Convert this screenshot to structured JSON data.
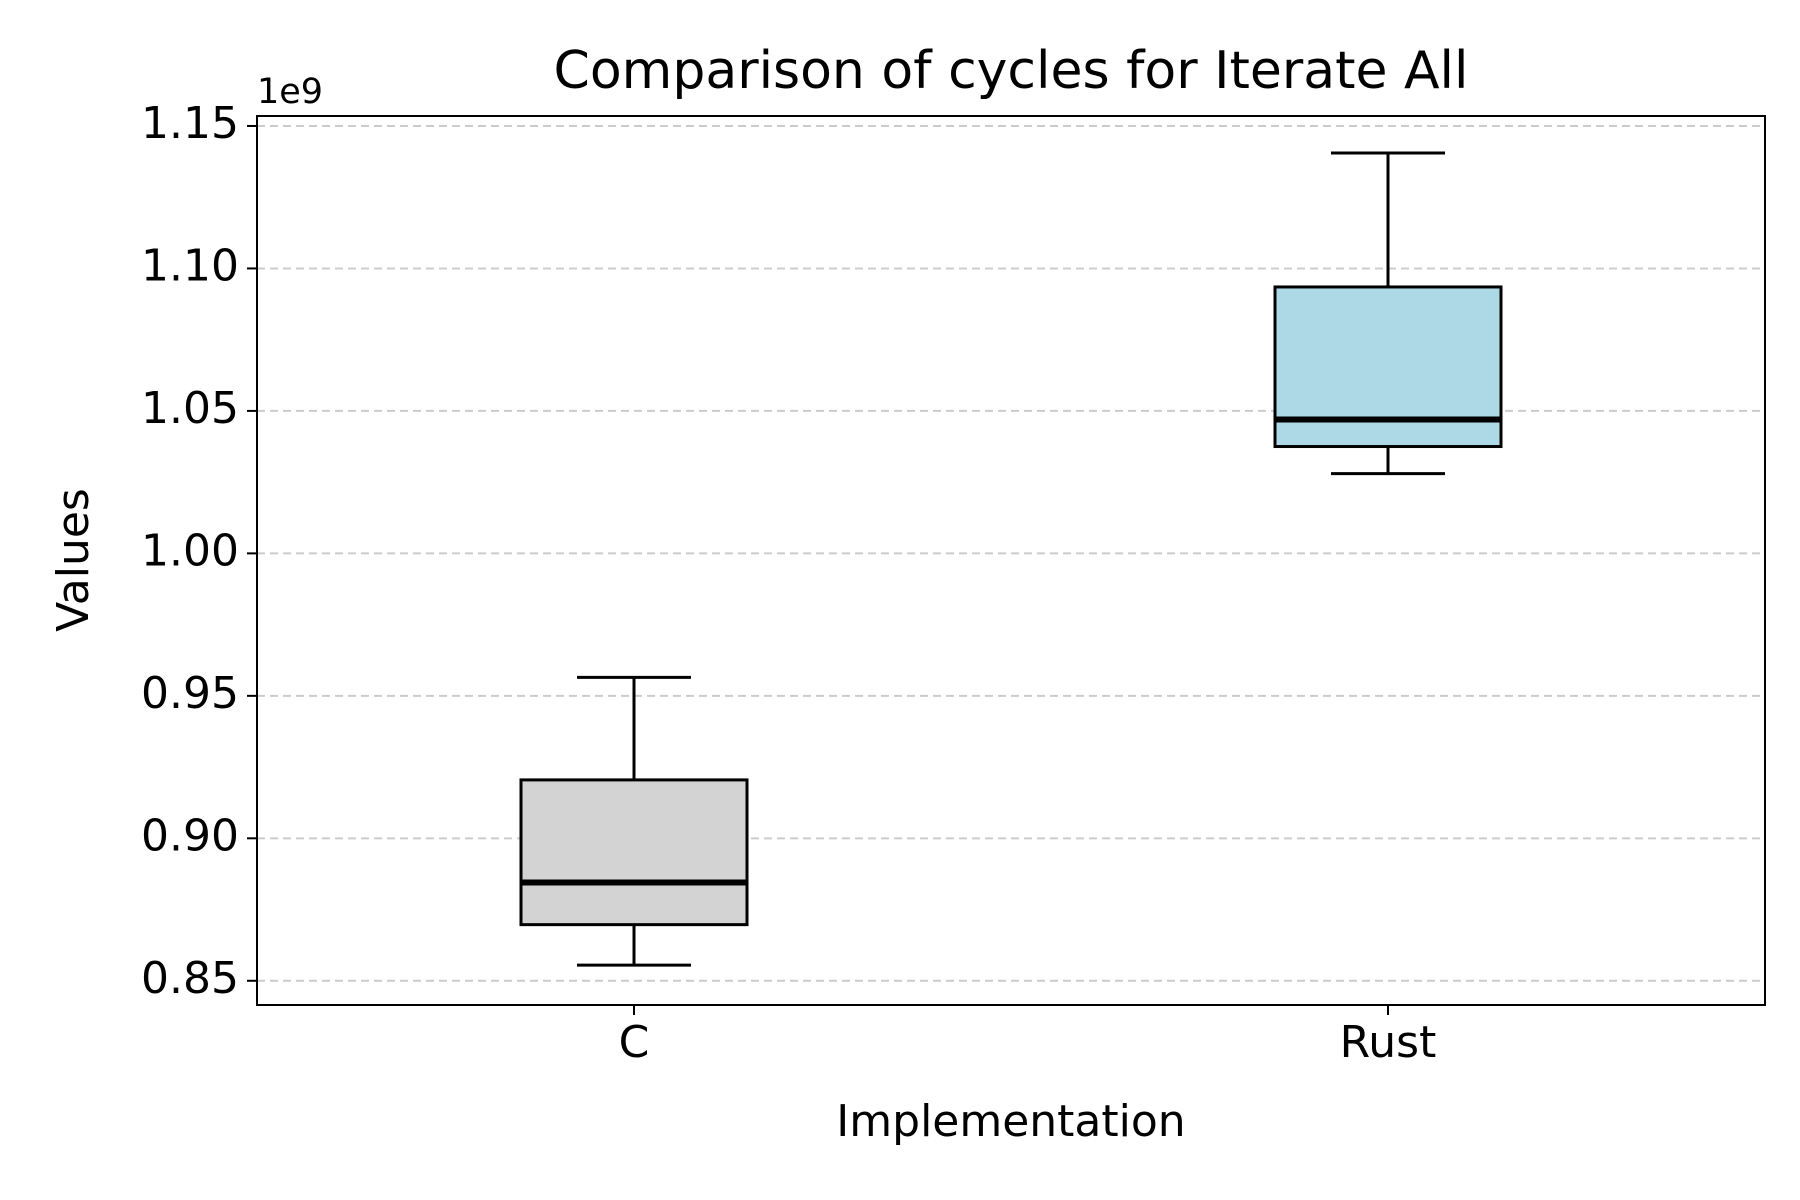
{
  "chart_data": {
    "type": "box",
    "title": "Comparison of cycles for Iterate All",
    "xlabel": "Implementation",
    "ylabel": "Values",
    "y_offset_label": "1e9",
    "ylim": [
      0.8415,
      1.1535
    ],
    "y_scale_factor": 1000000000,
    "y_ticks": [
      0.85,
      0.9,
      0.95,
      1.0,
      1.05,
      1.1,
      1.15
    ],
    "y_tick_labels": [
      "0.85",
      "0.90",
      "0.95",
      "1.00",
      "1.05",
      "1.10",
      "1.15"
    ],
    "grid": "y-dashed",
    "categories": [
      "C",
      "Rust"
    ],
    "boxes": [
      {
        "label": "C",
        "whisker_low": 0.8555,
        "q1": 0.8697,
        "median": 0.8845,
        "q3": 0.9205,
        "whisker_high": 0.9565,
        "color": "#d3d3d3"
      },
      {
        "label": "Rust",
        "whisker_low": 1.028,
        "q1": 1.0375,
        "median": 1.047,
        "q3": 1.0935,
        "whisker_high": 1.1405,
        "color": "#add8e6"
      }
    ]
  }
}
